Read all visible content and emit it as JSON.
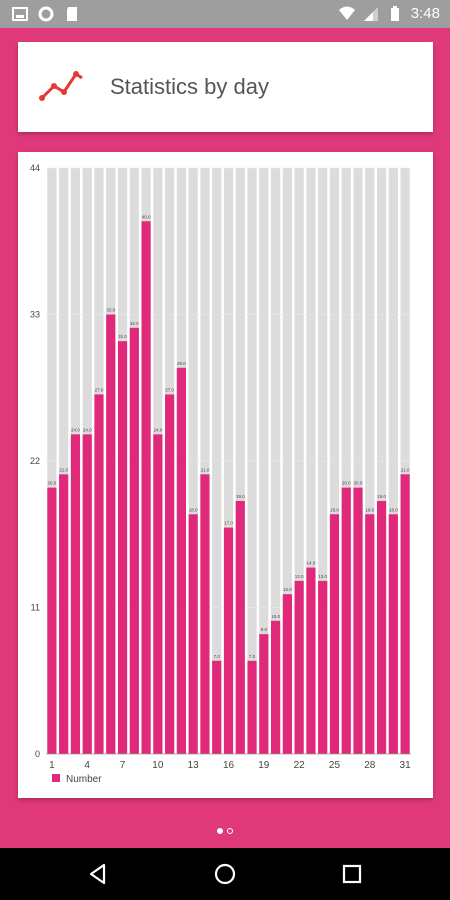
{
  "status_bar": {
    "time": "3:48",
    "left_icons": [
      "image-icon",
      "circle-icon",
      "sd-card-icon"
    ],
    "right_icons": [
      "wifi-icon",
      "signal-icon",
      "battery-icon"
    ]
  },
  "header": {
    "title": "Statistics by day",
    "icon": "line-chart-icon",
    "icon_color": "#e53935"
  },
  "chart_data": {
    "type": "bar",
    "categories": [
      "1",
      "2",
      "3",
      "4",
      "5",
      "6",
      "7",
      "8",
      "9",
      "10",
      "11",
      "12",
      "13",
      "14",
      "15",
      "16",
      "17",
      "18",
      "19",
      "20",
      "21",
      "22",
      "23",
      "24",
      "25",
      "26",
      "27",
      "28",
      "29",
      "30",
      "31"
    ],
    "x_tick_labels": [
      "1",
      "4",
      "7",
      "10",
      "13",
      "16",
      "19",
      "22",
      "25",
      "28",
      "31"
    ],
    "series": [
      {
        "name": "Number",
        "values": [
          20,
          21,
          24,
          24,
          27,
          33,
          31,
          32,
          40,
          24,
          27,
          29,
          18,
          21,
          7,
          17,
          19,
          7,
          9,
          10,
          12,
          13,
          14,
          13,
          18,
          20,
          20,
          18,
          19,
          18,
          21
        ],
        "value_labels": [
          "20.0",
          "21.0",
          "24.0",
          "24.0",
          "27.0",
          "33.0",
          "31.0",
          "32.0",
          "40.0",
          "24.0",
          "27.0",
          "29.0",
          "18.0",
          "21.0",
          "7.0",
          "17.0",
          "19.0",
          "7.0",
          "9.0",
          "10.0",
          "12.0",
          "13.0",
          "14.0",
          "13.0",
          "18.0",
          "20.0",
          "20.0",
          "18.0",
          "19.0",
          "18.0",
          "21.0"
        ],
        "color": "#e0297a"
      }
    ],
    "background_bar_color": "#dcdcdc",
    "ylim": [
      0,
      44
    ],
    "y_ticks": [
      "0",
      "11",
      "22",
      "33",
      "44"
    ],
    "legend_position": "bottom-left",
    "xlabel": "",
    "ylabel": ""
  },
  "pager": {
    "pages": 2,
    "active_index": 0
  },
  "nav_bar": {
    "buttons": [
      "back-icon",
      "home-icon",
      "recents-icon"
    ]
  },
  "colors": {
    "background": "#e0397a",
    "status_bar": "#9e9e9e",
    "nav_bar": "#000000"
  }
}
